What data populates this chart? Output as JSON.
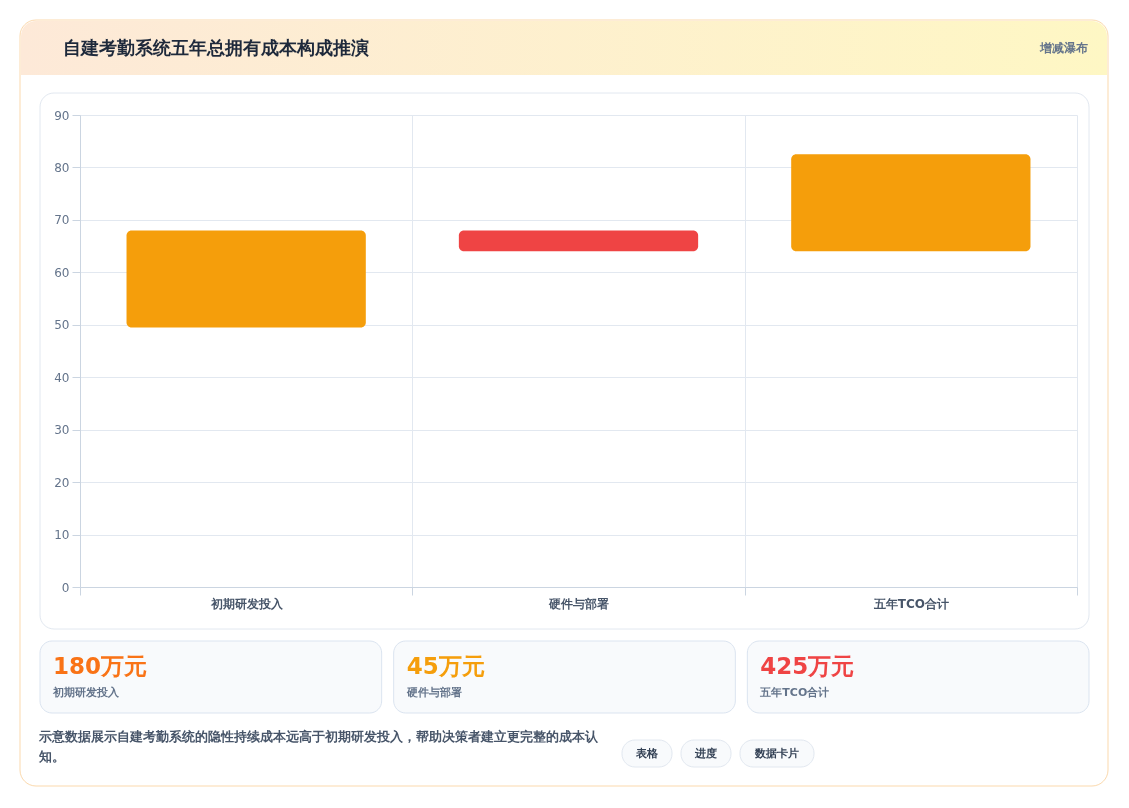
{
  "chart_data": [
    {
      "type": "bar",
      "title": "自建考勤系统五年总拥有成本构成推演",
      "subtitle": "增减瀑布",
      "categories": [
        "初期研发投入",
        "硬件与部署",
        "五年TCO合计"
      ],
      "values": [
        18.5,
        -4,
        18.5
      ],
      "base": [
        49.5,
        68,
        64
      ],
      "colors": [
        "#f59e0b",
        "#ef4444",
        "#f59e0b"
      ],
      "ylim": [
        0,
        90
      ],
      "yticks": [
        0,
        10,
        20,
        30,
        40,
        50,
        60,
        70,
        80,
        90
      ],
      "grid": true,
      "annotations": [
        "示意数据展示自建考勤系统的隐性持续成本远高于初期研发投入，帮助决策者建立更完整的成本认知。",
        "表格",
        "进度",
        "数据卡片"
      ]
    },
    {
      "type": "other",
      "annotations": [
        "180万元",
        "初期研发投入",
        "45万元",
        "硬件与部署",
        "425万元",
        "五年TCO合计"
      ]
    }
  ]
}
